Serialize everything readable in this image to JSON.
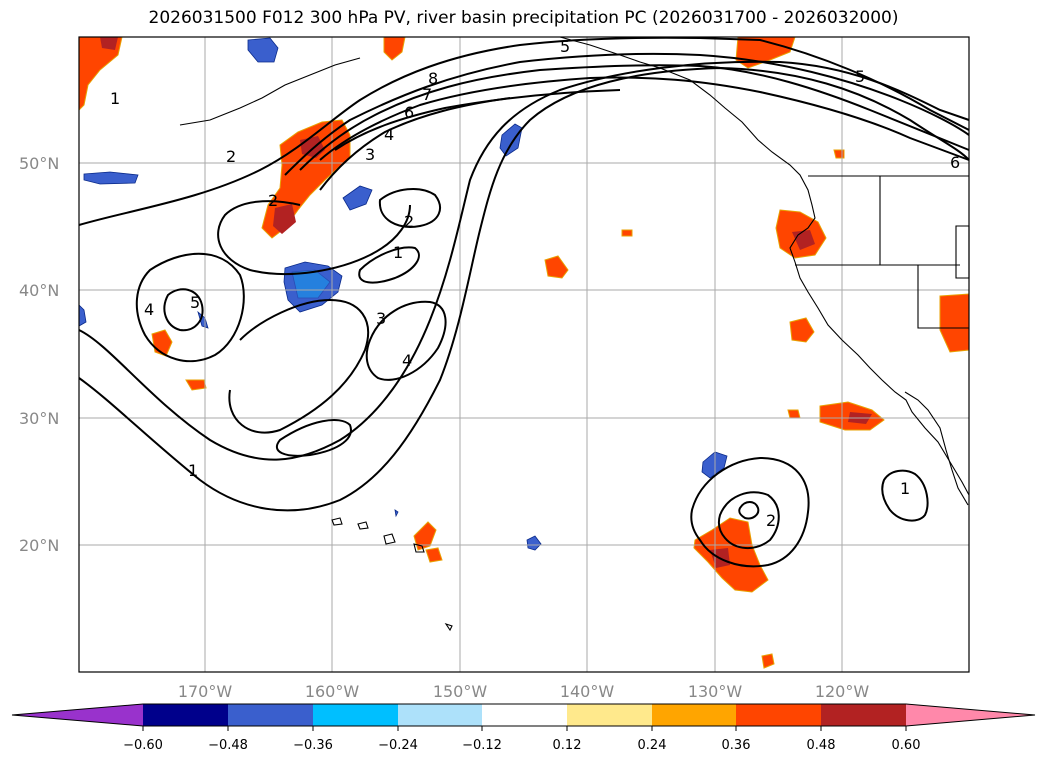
{
  "title": "2026031500 F012 300 hPa PV, river basin precipitation PC (2026031700 - 2026032000)",
  "lat_labels": [
    "50°N",
    "40°N",
    "30°N",
    "20°N"
  ],
  "lon_labels": [
    "170°W",
    "160°W",
    "150°W",
    "140°W",
    "130°W",
    "120°W"
  ],
  "contour_labels": [
    "1",
    "1",
    "1",
    "1",
    "2",
    "2",
    "2",
    "2",
    "3",
    "3",
    "4",
    "4",
    "4",
    "5",
    "5",
    "5",
    "6",
    "6",
    "7",
    "8"
  ],
  "colorbar": {
    "ticks": [
      "−0.60",
      "−0.48",
      "−0.36",
      "−0.24",
      "−0.12",
      "0.12",
      "0.24",
      "0.36",
      "0.48",
      "0.60"
    ],
    "colors": [
      "#9932CC",
      "#00008B",
      "#3A5FCD",
      "#00BFFF",
      "#ADE1FA",
      "#FFFFFF",
      "#FFE98C",
      "#FFA500",
      "#FF4500",
      "#B22222",
      "#FF88AA"
    ]
  }
}
